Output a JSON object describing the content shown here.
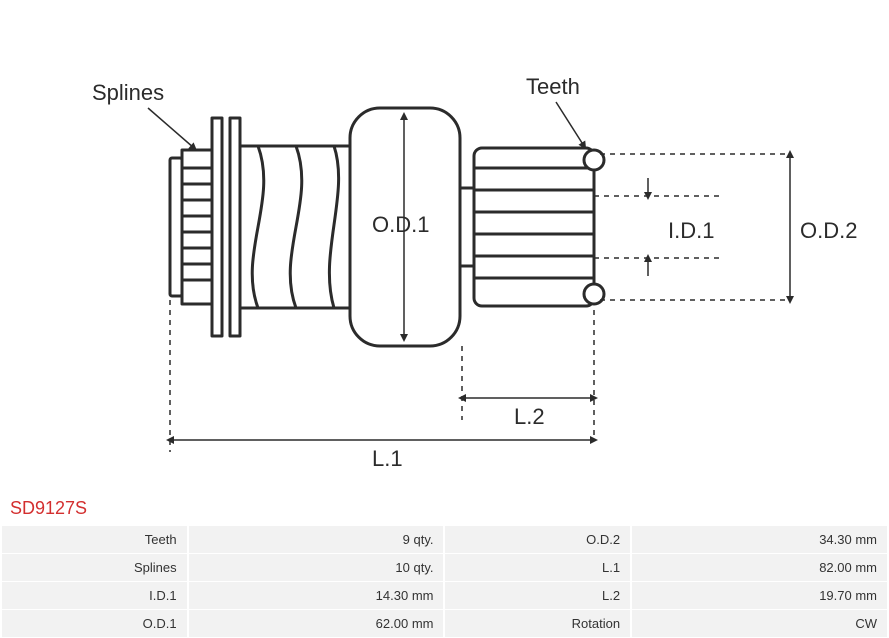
{
  "part_number": "SD9127S",
  "labels": {
    "splines": "Splines",
    "teeth": "Teeth",
    "od1": "O.D.1",
    "od2": "O.D.2",
    "id1": "I.D.1",
    "l1": "L.1",
    "l2": "L.2"
  },
  "specs": {
    "rows": [
      {
        "label1": "Teeth",
        "value1": "9 qty.",
        "label2": "O.D.2",
        "value2": "34.30 mm"
      },
      {
        "label1": "Splines",
        "value1": "10 qty.",
        "label2": "L.1",
        "value2": "82.00 mm"
      },
      {
        "label1": "I.D.1",
        "value1": "14.30 mm",
        "label2": "L.2",
        "value2": "19.70 mm"
      },
      {
        "label1": "O.D.1",
        "value1": "62.00 mm",
        "label2": "Rotation",
        "value2": "CW"
      }
    ]
  },
  "style": {
    "stroke": "#2b2b2b",
    "stroke_thick": 3,
    "stroke_thin": 1.5,
    "dash": "5,5",
    "background": "#ffffff",
    "part_color": "#d32f2f",
    "table_bg": "#f2f2f2",
    "label_fontsize": 22,
    "text_color": "#2b2b2b"
  },
  "diagram": {
    "type": "engineering-drawing",
    "view": "side-profile",
    "component": "starter-drive-pinion"
  }
}
